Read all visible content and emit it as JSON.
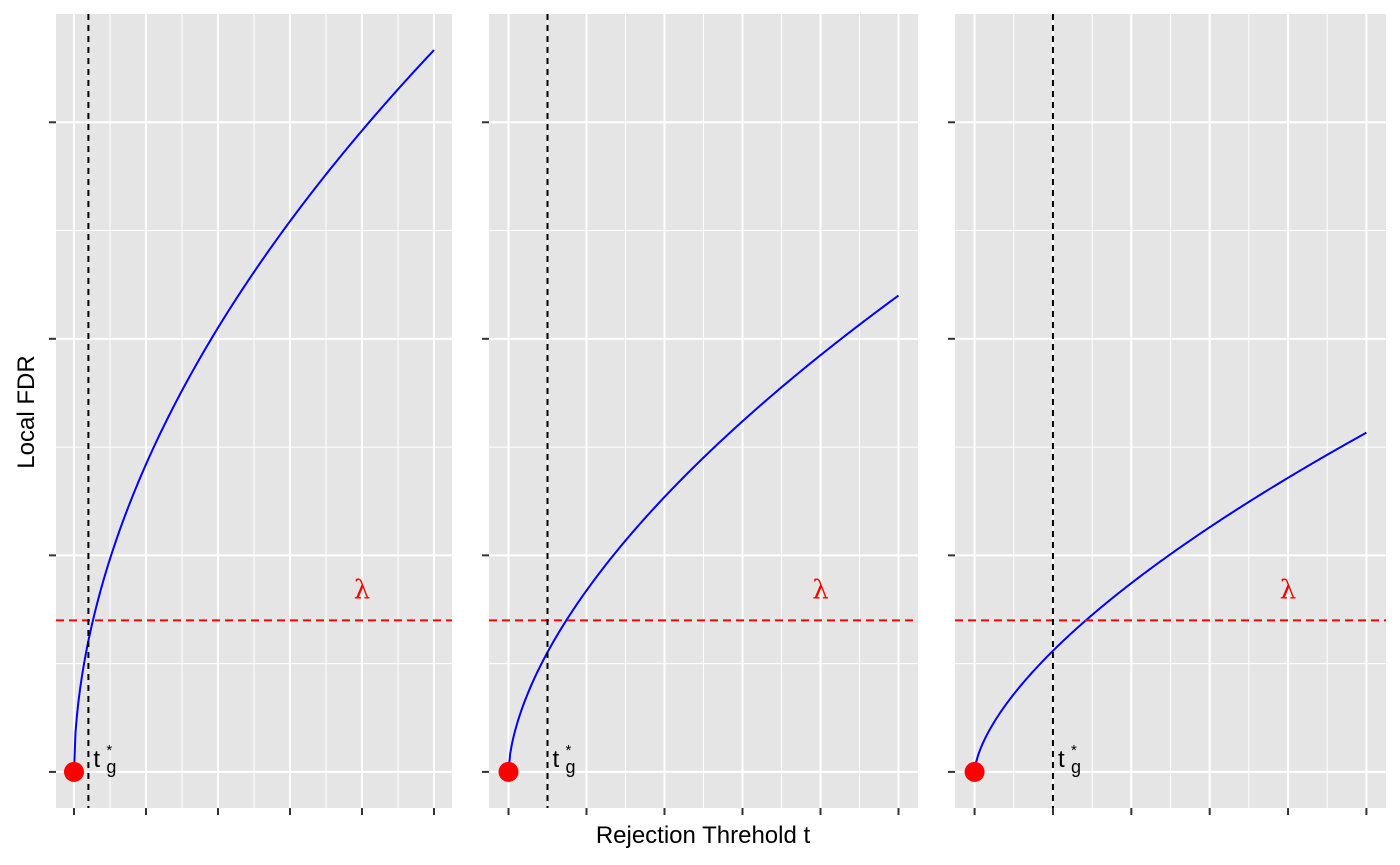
{
  "chart_data": {
    "type": "line",
    "xlabel": "Rejection Threhold t",
    "ylabel": "Local FDR",
    "threshold_label": "λ",
    "tstar_label": {
      "base": "t",
      "sub": "g",
      "sup": "*"
    },
    "colors": {
      "curve": "#0000FF",
      "threshold": "#FF0000",
      "cutoff": "#000000",
      "point": "#FF0000",
      "panel_bg": "#E5E5E5",
      "grid": "#FFFFFF"
    },
    "grid": true,
    "xlim": [
      -0.05,
      1.05
    ],
    "ylim": [
      -0.05,
      1.05
    ],
    "x_ticks": [
      0,
      0.2,
      0.4,
      0.6,
      0.8,
      1.0
    ],
    "y_ticks": [
      0,
      0.3,
      0.6,
      0.9
    ],
    "tick_labels_visible": false,
    "threshold_y": 0.21,
    "panels": [
      {
        "exponent": 0.53,
        "t_star": 0.04,
        "point": [
          0,
          0
        ]
      },
      {
        "exponent": 0.6,
        "t_star": 0.1,
        "point": [
          0,
          0
        ]
      },
      {
        "exponent": 0.64,
        "t_star": 0.2,
        "point": [
          0,
          0
        ]
      }
    ],
    "series": [
      {
        "curve_max": 1.0
      },
      {
        "curve_max": 0.66
      },
      {
        "curve_max": 0.47
      }
    ]
  }
}
